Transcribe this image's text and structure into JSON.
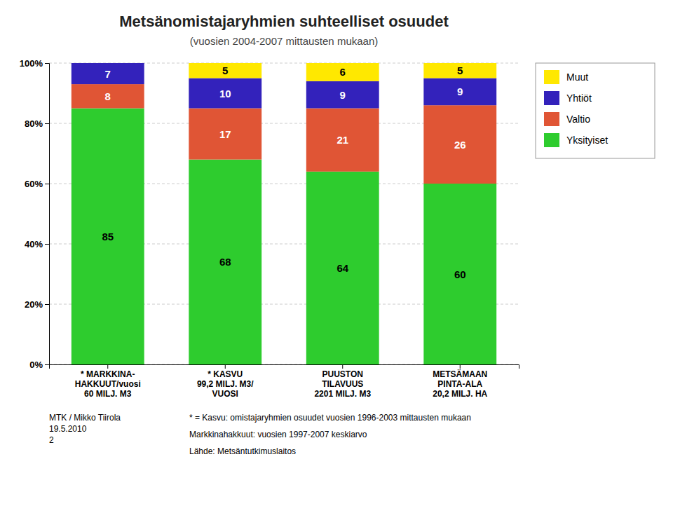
{
  "chart_data": {
    "type": "bar",
    "stacked": true,
    "title": "Metsänomistajaryhmien suhteelliset osuudet",
    "subtitle": "(vuosien 2004-2007 mittausten mukaan)",
    "categories": [
      "* MARKKINA-\nHAKKUUT/vuosi\n60 MILJ. M3",
      "* KASVU\n99,2 MILJ. M3/\nVUOSI",
      "PUUSTON\nTILAVUUS\n2201 MILJ. M3",
      "METSÄMAAN\nPINTA-ALA\n20,2 MILJ. HA"
    ],
    "series": [
      {
        "name": "Yksityiset",
        "color": "#2ECC2E",
        "values": [
          85,
          68,
          64,
          60
        ]
      },
      {
        "name": "Valtio",
        "color": "#E05535",
        "values": [
          8,
          17,
          21,
          26
        ]
      },
      {
        "name": "Yhtiöt",
        "color": "#3322BB",
        "values": [
          7,
          10,
          9,
          9
        ]
      },
      {
        "name": "Muut",
        "color": "#FFE800",
        "values": [
          0,
          5,
          6,
          5
        ]
      }
    ],
    "ylim": [
      0,
      100
    ],
    "yticks": [
      {
        "value": 0,
        "label": "0%"
      },
      {
        "value": 20,
        "label": "20%"
      },
      {
        "value": 40,
        "label": "40%"
      },
      {
        "value": 60,
        "label": "60%"
      },
      {
        "value": 80,
        "label": "80%"
      },
      {
        "value": 100,
        "label": "100%"
      }
    ],
    "grid": true,
    "legend": "right",
    "data_labels": true,
    "annotations": [
      "MTK / Mikko Tiirola\n19.5.2010\n2",
      "* = Kasvu: omistajaryhmien osuudet vuosien 1996-2003 mittausten mukaan",
      "Markkinahakkuut: vuosien 1997-2007 keskiarvo",
      "Lähde: Metsäntutkimuslaitos"
    ]
  }
}
